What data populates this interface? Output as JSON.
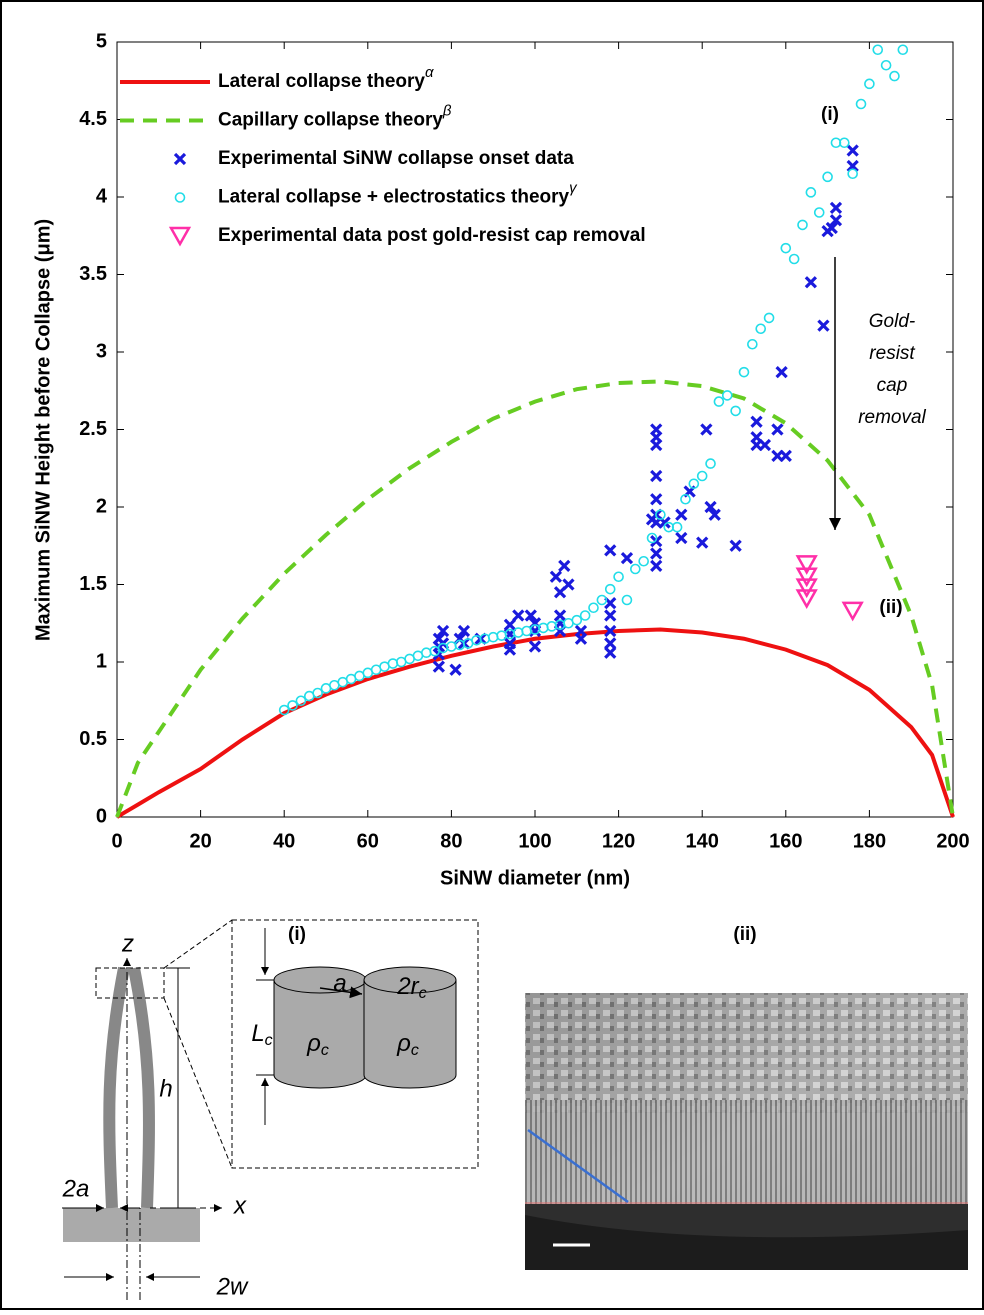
{
  "chart_data": {
    "type": "line",
    "xlabel": "SiNW diameter (nm)",
    "ylabel": "Maximum SiNW Height before Collapse (μm)",
    "xlim": [
      0,
      200
    ],
    "xticks": [
      0,
      20,
      40,
      60,
      80,
      100,
      120,
      140,
      160,
      180,
      200
    ],
    "ylim": [
      0,
      5
    ],
    "yticks": [
      0,
      0.5,
      1,
      1.5,
      2,
      2.5,
      3,
      3.5,
      4,
      4.5,
      5
    ],
    "series": [
      {
        "name": "Lateral collapse theory",
        "superscript": "α",
        "type": "line",
        "color": "#ee1111",
        "dash": false,
        "x": [
          0,
          5,
          10,
          20,
          30,
          40,
          50,
          60,
          70,
          80,
          90,
          100,
          110,
          120,
          130,
          140,
          150,
          160,
          170,
          180,
          190,
          195,
          200
        ],
        "values": [
          0,
          0.08,
          0.16,
          0.31,
          0.5,
          0.67,
          0.79,
          0.89,
          0.97,
          1.04,
          1.1,
          1.15,
          1.18,
          1.2,
          1.21,
          1.19,
          1.15,
          1.08,
          0.98,
          0.82,
          0.58,
          0.4,
          0
        ]
      },
      {
        "name": "Capillary collapse theory",
        "superscript": "β",
        "type": "line",
        "color": "#66cc22",
        "dash": true,
        "x": [
          0,
          5,
          10,
          20,
          30,
          40,
          50,
          60,
          70,
          80,
          90,
          100,
          110,
          120,
          130,
          140,
          150,
          160,
          170,
          180,
          190,
          195,
          200
        ],
        "values": [
          0,
          0.35,
          0.55,
          0.95,
          1.28,
          1.57,
          1.82,
          2.05,
          2.25,
          2.42,
          2.57,
          2.68,
          2.76,
          2.8,
          2.81,
          2.78,
          2.7,
          2.54,
          2.3,
          1.95,
          1.3,
          0.85,
          0
        ]
      },
      {
        "name": "Experimental SiNW collapse onset data",
        "type": "scatter",
        "marker": "x",
        "color": "#1a1adc",
        "x": [
          77,
          77,
          77,
          77,
          78,
          78,
          81,
          82,
          83,
          83,
          87,
          94,
          94,
          94,
          94,
          96,
          99,
          100,
          100,
          100,
          105,
          106,
          106,
          106,
          106,
          107,
          108,
          111,
          111,
          118,
          118,
          118,
          118,
          118,
          118,
          122,
          128,
          129,
          129,
          129,
          129,
          129,
          129,
          129,
          129,
          129,
          129,
          131,
          135,
          135,
          137,
          140,
          141,
          142,
          143,
          148,
          153,
          153,
          153,
          155,
          158,
          160,
          159,
          158,
          166,
          169,
          171,
          172,
          172,
          170,
          176,
          176
        ],
        "values": [
          0.97,
          1.05,
          1.1,
          1.15,
          1.2,
          1.12,
          0.95,
          1.15,
          1.2,
          1.12,
          1.15,
          1.08,
          1.12,
          1.18,
          1.24,
          1.3,
          1.3,
          1.1,
          1.2,
          1.25,
          1.55,
          1.45,
          1.3,
          1.25,
          1.2,
          1.62,
          1.5,
          1.15,
          1.2,
          1.72,
          1.38,
          1.3,
          1.2,
          1.12,
          1.06,
          1.67,
          1.92,
          2.5,
          2.45,
          2.4,
          2.2,
          2.05,
          1.95,
          1.9,
          1.78,
          1.7,
          1.62,
          1.9,
          1.95,
          1.8,
          2.1,
          1.77,
          2.5,
          2.0,
          1.95,
          1.75,
          2.55,
          2.45,
          2.4,
          2.4,
          2.33,
          2.33,
          2.87,
          2.5,
          3.45,
          3.17,
          3.8,
          3.85,
          3.93,
          3.78,
          4.2,
          4.3
        ]
      },
      {
        "name": "Lateral collapse + electrostatics theory",
        "superscript": "γ",
        "type": "scatter",
        "marker": "circle",
        "color": "#22dde8",
        "x": [
          40,
          42,
          44,
          46,
          48,
          50,
          52,
          54,
          56,
          58,
          60,
          62,
          64,
          66,
          68,
          70,
          72,
          74,
          76,
          78,
          80,
          82,
          84,
          86,
          88,
          90,
          92,
          94,
          96,
          98,
          100,
          102,
          104,
          106,
          108,
          110,
          112,
          114,
          116,
          118,
          120,
          122,
          124,
          126,
          128,
          130,
          132,
          134,
          136,
          138,
          140,
          142,
          144,
          146,
          148,
          150,
          152,
          154,
          156,
          160,
          162,
          164,
          166,
          168,
          170,
          172,
          174,
          176,
          178,
          180,
          182,
          184,
          186,
          188
        ],
        "values": [
          0.69,
          0.72,
          0.75,
          0.78,
          0.8,
          0.83,
          0.85,
          0.87,
          0.89,
          0.91,
          0.93,
          0.95,
          0.97,
          0.99,
          1.0,
          1.02,
          1.04,
          1.06,
          1.07,
          1.09,
          1.1,
          1.11,
          1.12,
          1.14,
          1.15,
          1.16,
          1.17,
          1.18,
          1.19,
          1.2,
          1.21,
          1.22,
          1.23,
          1.24,
          1.25,
          1.27,
          1.3,
          1.35,
          1.4,
          1.47,
          1.55,
          1.4,
          1.6,
          1.65,
          1.8,
          1.95,
          1.87,
          1.87,
          2.05,
          2.15,
          2.2,
          2.28,
          2.68,
          2.72,
          2.62,
          2.87,
          3.05,
          3.15,
          3.22,
          3.67,
          3.6,
          3.82,
          4.03,
          3.9,
          4.13,
          4.35,
          4.35,
          4.15,
          4.6,
          4.73,
          4.95,
          4.85,
          4.78,
          4.95
        ]
      },
      {
        "name": "Experimental data post gold-resist cap removal",
        "type": "scatter",
        "marker": "triangle",
        "color": "#ff2fa8",
        "x": [
          165,
          165,
          165,
          165,
          176
        ],
        "values": [
          1.63,
          1.55,
          1.48,
          1.41,
          1.33
        ]
      }
    ],
    "annotations": {
      "top_label": "(i)",
      "bottom_label": "(ii)",
      "arrow_text": [
        "Gold-",
        "resist",
        "cap",
        "removal"
      ]
    }
  },
  "panels": {
    "i": {
      "title": "(i)",
      "z": "z",
      "x": "x",
      "h": "h",
      "two_a": "2a",
      "two_w": "2w",
      "a": "a",
      "two_r": "2r",
      "r_sub": "c",
      "L": "L",
      "L_sub": "c",
      "rho": "ρ",
      "rho_sub": "c"
    },
    "ii": {
      "title": "(ii)"
    }
  }
}
